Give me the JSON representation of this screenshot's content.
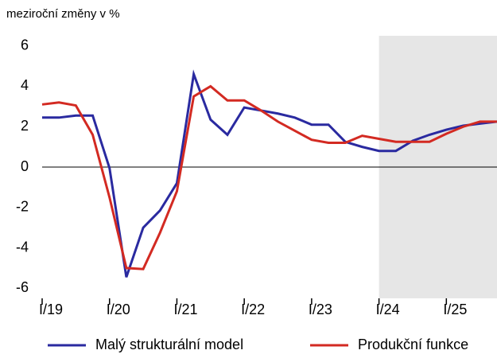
{
  "chart_data": {
    "type": "line",
    "title": "meziroční změny v %",
    "categories": [
      "I/19",
      null,
      null,
      null,
      "I/20",
      null,
      null,
      null,
      "I/21",
      null,
      null,
      null,
      "I/22",
      null,
      null,
      null,
      "I/23",
      null,
      null,
      null,
      "I/24",
      null,
      null,
      null,
      "I/25",
      null,
      null,
      null
    ],
    "series": [
      {
        "name": "Malý strukturální model",
        "color": "#2a2aa0",
        "values": [
          2.45,
          2.45,
          2.55,
          2.55,
          -0.05,
          -5.45,
          -3.0,
          -2.15,
          -0.8,
          4.6,
          2.35,
          1.6,
          2.95,
          2.8,
          2.65,
          2.45,
          2.1,
          2.1,
          1.25,
          1.0,
          0.8,
          0.8,
          1.3,
          1.6,
          1.85,
          2.05,
          2.15,
          2.25
        ]
      },
      {
        "name": "Produkční funkce",
        "color": "#d32a22",
        "values": [
          3.1,
          3.2,
          3.05,
          1.6,
          -1.5,
          -5.0,
          -5.05,
          -3.25,
          -1.2,
          3.5,
          4.0,
          3.3,
          3.3,
          2.8,
          2.25,
          1.8,
          1.35,
          1.2,
          1.2,
          1.55,
          1.4,
          1.25,
          1.25,
          1.25,
          1.65,
          2.0,
          2.25,
          2.25
        ]
      }
    ],
    "ylim": [
      -6.5,
      6.5
    ],
    "yticks": [
      -6,
      -4,
      -2,
      0,
      2,
      4,
      6
    ],
    "grid": false,
    "shade_start": "I/24",
    "shade_color": "#e6e6e6",
    "legend": "bottom"
  }
}
